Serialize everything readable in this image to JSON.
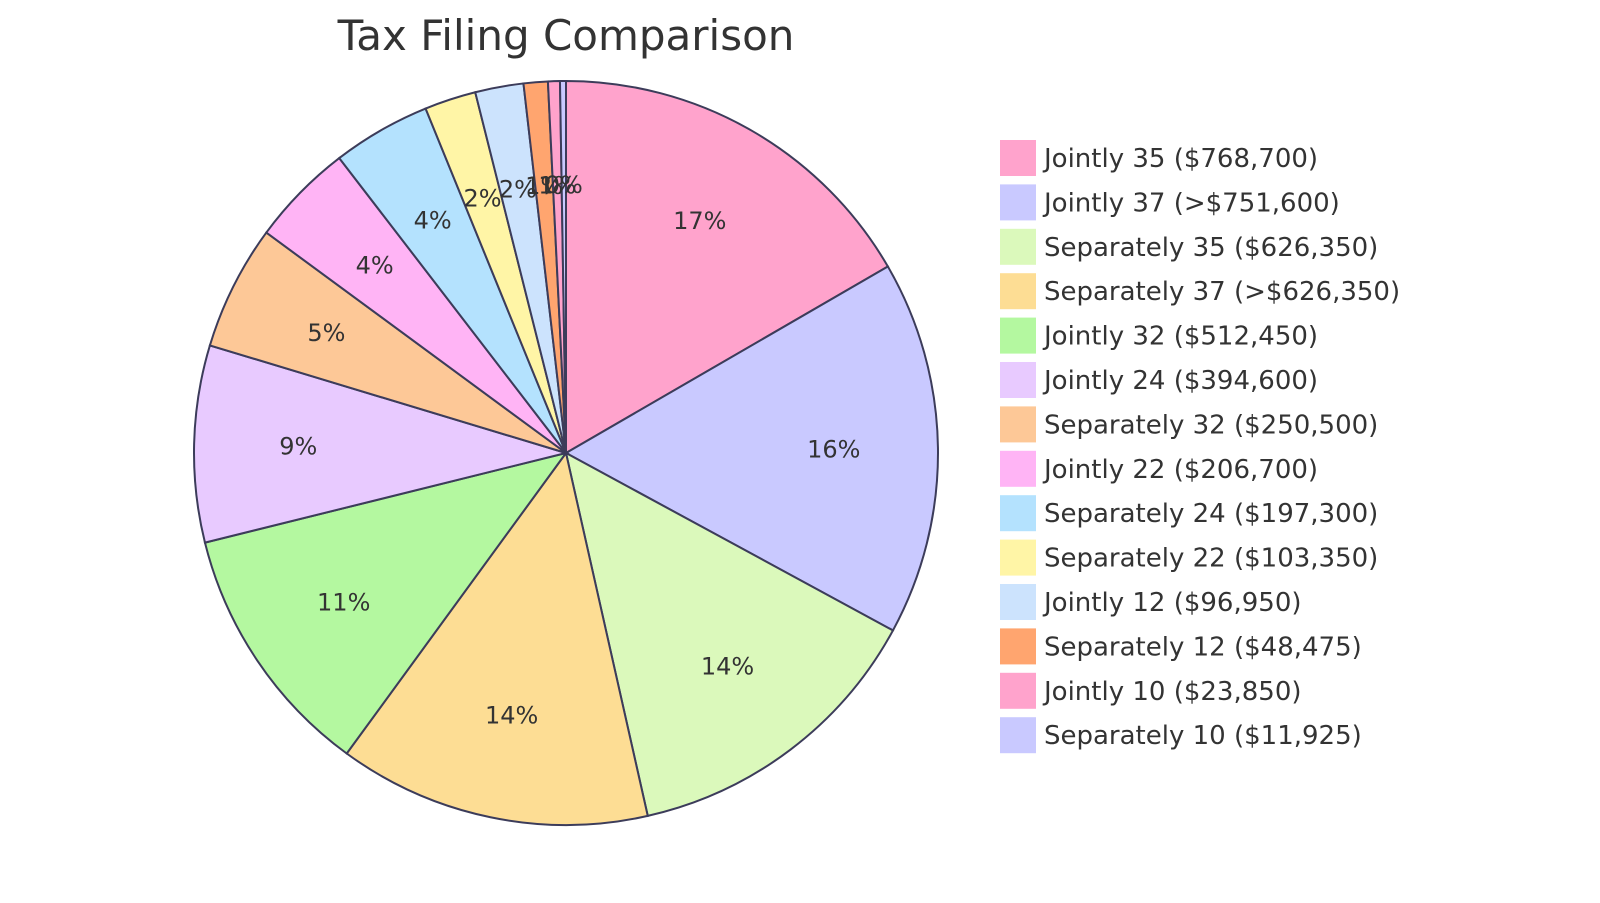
{
  "chart_data": {
    "type": "pie",
    "title": "Tax Filing Comparison",
    "labels": [
      "Jointly 35 ($768,700)",
      "Jointly 37 (>$751,600)",
      "Separately 35 ($626,350)",
      "Separately 37 (>$626,350)",
      "Jointly 32 ($512,450)",
      "Jointly 24 ($394,600)",
      "Separately 32 ($250,500)",
      "Jointly 22 ($206,700)",
      "Separately 24 ($197,300)",
      "Separately 22 ($103,350)",
      "Jointly 12 ($96,950)",
      "Separately 12 ($48,475)",
      "Jointly 10 ($23,850)",
      "Separately 10 ($11,925)"
    ],
    "values": [
      768700,
      751600,
      626350,
      626350,
      512450,
      394600,
      250500,
      206700,
      197300,
      103350,
      96950,
      48475,
      23850,
      11925
    ],
    "percent_labels": [
      "17%",
      "16%",
      "14%",
      "14%",
      "11%",
      "9%",
      "5%",
      "4%",
      "4%",
      "2%",
      "2%",
      "1%",
      "1%",
      "0%"
    ],
    "colors": [
      "#ffa3cc",
      "#c9c9ff",
      "#dbf9bb",
      "#fddd94",
      "#b4f8a0",
      "#e8caff",
      "#fdc897",
      "#ffb4f5",
      "#b4e2fe",
      "#fff5a6",
      "#cce3fd",
      "#ffa56f",
      "#ffa3cc",
      "#c9c9ff"
    ],
    "legend_position": "right"
  }
}
